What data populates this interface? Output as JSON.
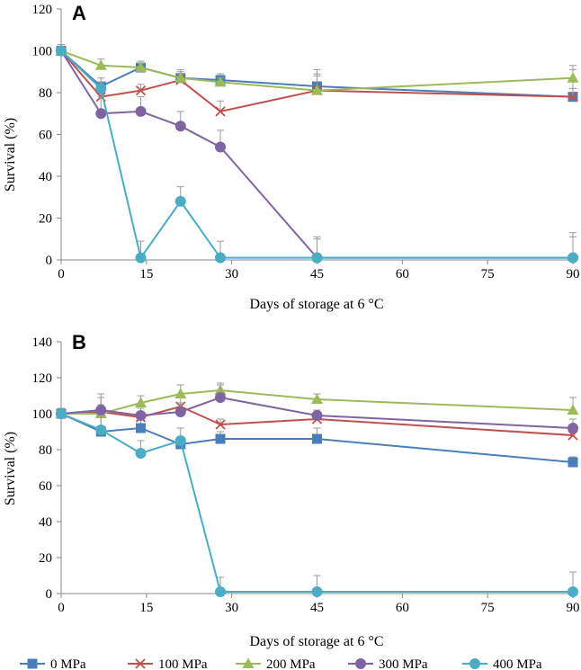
{
  "legend": [
    {
      "name": "0 MPa",
      "color": "#4a7ebb",
      "marker": "square"
    },
    {
      "name": "100 MPa",
      "color": "#c0504d",
      "marker": "x"
    },
    {
      "name": "200 MPa",
      "color": "#9bbb59",
      "marker": "triangle"
    },
    {
      "name": "300 MPa",
      "color": "#8064a2",
      "marker": "circle"
    },
    {
      "name": "400 MPa",
      "color": "#4bacc6",
      "marker": "circle"
    }
  ],
  "chart_data": [
    {
      "type": "line",
      "panel_label": "A",
      "xlabel": "Days of storage at 6 °C",
      "ylabel": "Survival (%)",
      "xlim": [
        0,
        90
      ],
      "ylim": [
        0,
        120
      ],
      "x_ticks": [
        0,
        15,
        30,
        45,
        60,
        75,
        90
      ],
      "y_ticks": [
        0,
        20,
        40,
        60,
        80,
        100,
        120
      ],
      "x": [
        0,
        7,
        14,
        21,
        28,
        45,
        90
      ],
      "series": [
        {
          "name": "0 MPa",
          "values": [
            100,
            83,
            92,
            87,
            86,
            83,
            78
          ],
          "errors": [
            3,
            4,
            3,
            4,
            3,
            8,
            13
          ]
        },
        {
          "name": "100 MPa",
          "values": [
            100,
            78,
            81,
            86,
            71,
            81,
            78
          ],
          "errors": [
            3,
            3,
            3,
            3,
            5,
            7,
            4
          ]
        },
        {
          "name": "200 MPa",
          "values": [
            100,
            93,
            92,
            87,
            85,
            81,
            87
          ],
          "errors": [
            3,
            3,
            2,
            3,
            2,
            8,
            6
          ]
        },
        {
          "name": "300 MPa",
          "values": [
            100,
            70,
            71,
            64,
            54,
            1,
            1
          ],
          "errors": [
            3,
            8,
            7,
            7,
            8,
            10,
            10
          ]
        },
        {
          "name": "400 MPa",
          "values": [
            100,
            82,
            1,
            28,
            1,
            1,
            1
          ],
          "errors": [
            3,
            3,
            8,
            7,
            8,
            9,
            12
          ]
        }
      ]
    },
    {
      "type": "line",
      "panel_label": "B",
      "xlabel": "Days of storage at 6 °C",
      "ylabel": "Survival (%)",
      "xlim": [
        0,
        90
      ],
      "ylim": [
        0,
        140
      ],
      "x_ticks": [
        0,
        15,
        30,
        45,
        60,
        75,
        90
      ],
      "y_ticks": [
        0,
        20,
        40,
        60,
        80,
        100,
        120,
        140
      ],
      "x": [
        0,
        7,
        14,
        21,
        28,
        45,
        90
      ],
      "series": [
        {
          "name": "0 MPa",
          "values": [
            100,
            90,
            92,
            83,
            86,
            86,
            73
          ],
          "errors": [
            3,
            8,
            6,
            4,
            4,
            6,
            3
          ]
        },
        {
          "name": "100 MPa",
          "values": [
            100,
            101,
            98,
            104,
            94,
            97,
            88
          ],
          "errors": [
            3,
            8,
            5,
            6,
            3,
            5,
            4
          ]
        },
        {
          "name": "200 MPa",
          "values": [
            100,
            100,
            106,
            111,
            113,
            108,
            102
          ],
          "errors": [
            3,
            5,
            4,
            5,
            4,
            3,
            7
          ]
        },
        {
          "name": "300 MPa",
          "values": [
            100,
            102,
            99,
            101,
            109,
            99,
            92
          ],
          "errors": [
            3,
            9,
            4,
            5,
            7,
            3,
            5
          ]
        },
        {
          "name": "400 MPa",
          "values": [
            100,
            91,
            78,
            85,
            1,
            1,
            1
          ],
          "errors": [
            3,
            8,
            7,
            7,
            8,
            9,
            11
          ]
        }
      ]
    }
  ]
}
